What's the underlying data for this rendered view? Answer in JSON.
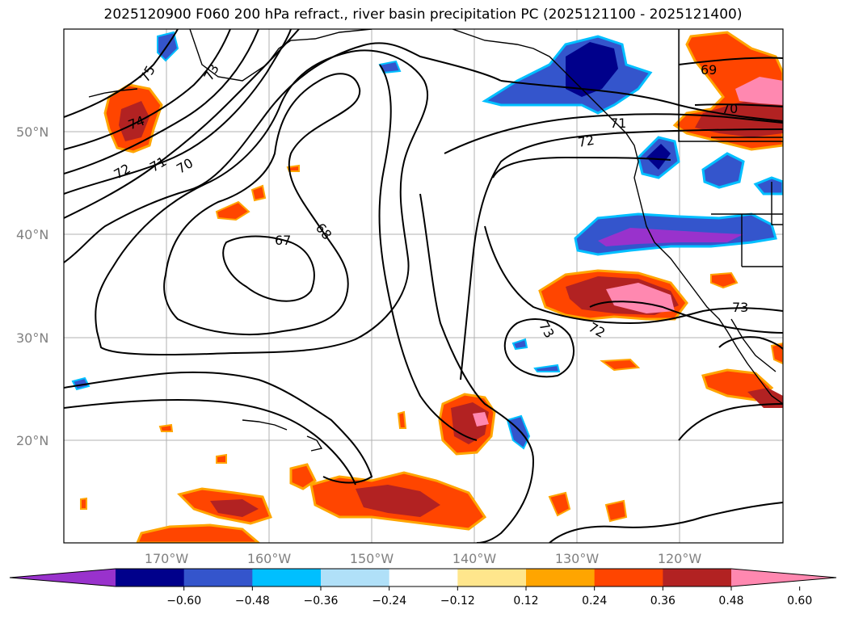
{
  "title": "2025120900 F060 200 hPa refract., river basin precipitation PC (2025121100 - 2025121400)",
  "map": {
    "lat_labels": [
      "50°N",
      "40°N",
      "30°N",
      "20°N"
    ],
    "lon_labels": [
      "170°W",
      "160°W",
      "150°W",
      "140°W",
      "130°W",
      "120°W"
    ],
    "contour_labels": [
      "75",
      "73",
      "74",
      "72",
      "71",
      "70",
      "67",
      "68",
      "69",
      "70",
      "71",
      "72",
      "73",
      "72",
      "73"
    ],
    "colors": {
      "coast": "#000000",
      "grid": "#b0b0b0",
      "contour": "#000000"
    }
  },
  "colorbar": {
    "ticks": [
      "−0.60",
      "−0.48",
      "−0.36",
      "−0.24",
      "−0.12",
      "0.12",
      "0.24",
      "0.36",
      "0.48",
      "0.60"
    ],
    "colors": [
      "#9932cc",
      "#00008b",
      "#3455cc",
      "#00bfff",
      "#b0e0f8",
      "#ffffff",
      "#ffe68c",
      "#ffa500",
      "#ff4500",
      "#b22222",
      "#ff88b0"
    ]
  }
}
